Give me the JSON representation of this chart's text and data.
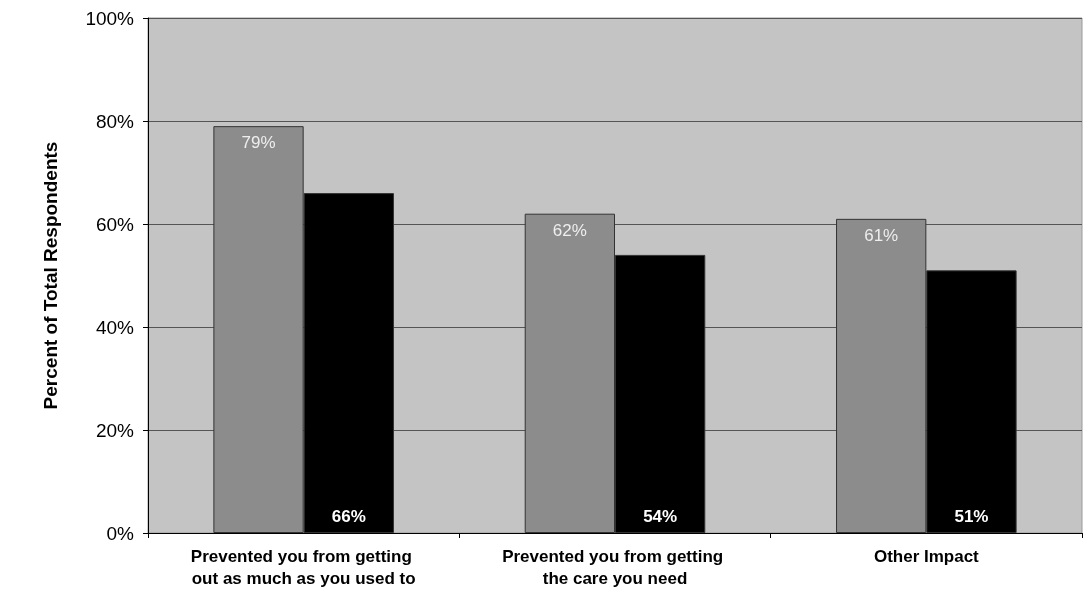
{
  "chart_data": {
    "type": "bar",
    "ylabel": "Percent of Total Respondents",
    "categories": [
      "Prevented you from getting out as much as you used to",
      "Prevented you from getting the care you need",
      "Other Impact"
    ],
    "series": [
      {
        "color": "#8c8c8c",
        "values": [
          79,
          62,
          61
        ],
        "value_labels": [
          "79%",
          "62%",
          "61%"
        ]
      },
      {
        "color": "#000000",
        "values": [
          66,
          54,
          51
        ],
        "value_labels": [
          "66%",
          "54%",
          "51%"
        ]
      }
    ],
    "ylim": [
      0,
      100
    ],
    "yticks": [
      {
        "value": 0,
        "label": "0%"
      },
      {
        "value": 20,
        "label": "20%"
      },
      {
        "value": 40,
        "label": "40%"
      },
      {
        "value": 60,
        "label": "60%"
      },
      {
        "value": 80,
        "label": "80%"
      },
      {
        "value": 100,
        "label": "100%"
      }
    ],
    "grid": "y"
  }
}
